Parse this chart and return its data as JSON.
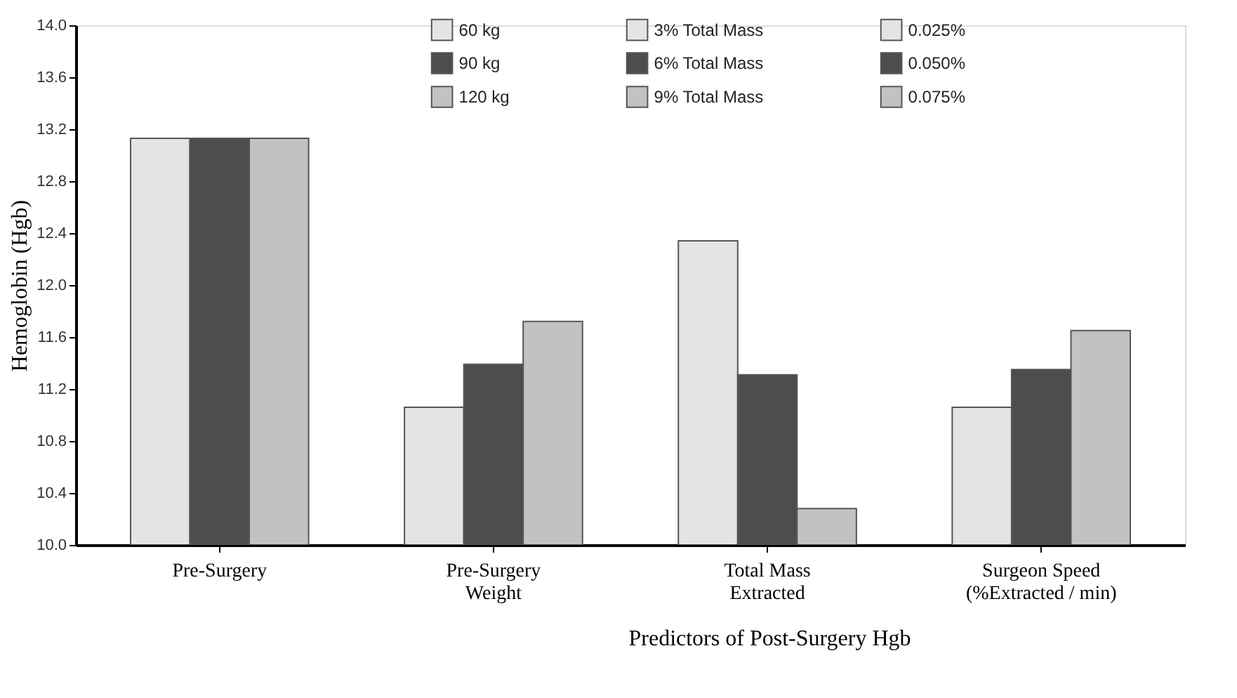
{
  "chart_data": {
    "type": "bar",
    "xlabel": "Predictors of Post-Surgery Hgb",
    "ylabel": "Hemoglobin (Hgb)",
    "categories": [
      "Pre-Surgery",
      "Pre-Surgery\nWeight",
      "Total Mass\nExtracted",
      "Surgeon Speed\n(%Extracted / min)"
    ],
    "series": [
      {
        "color": "#e4e4e4",
        "values": [
          13.13,
          null,
          null,
          null
        ]
      },
      {
        "color": "#4d4d4d",
        "values": [
          13.13,
          null,
          null,
          null
        ]
      },
      {
        "color": "#c2c2c2",
        "values": [
          13.13,
          null,
          null,
          null
        ]
      },
      {
        "name": "60 kg",
        "color": "#e4e4e4",
        "values": [
          null,
          11.06,
          null,
          null
        ]
      },
      {
        "name": "90 kg",
        "color": "#4d4d4d",
        "values": [
          null,
          11.39,
          null,
          null
        ]
      },
      {
        "name": "120 kg",
        "color": "#c2c2c2",
        "values": [
          null,
          11.72,
          null,
          null
        ]
      },
      {
        "name": "3% Total Mass",
        "color": "#e4e4e4",
        "values": [
          null,
          null,
          12.34,
          null
        ]
      },
      {
        "name": "6% Total Mass",
        "color": "#4d4d4d",
        "values": [
          null,
          null,
          11.31,
          null
        ]
      },
      {
        "name": "9% Total Mass",
        "color": "#c2c2c2",
        "values": [
          null,
          null,
          10.28,
          null
        ]
      },
      {
        "name": "0.025%",
        "color": "#e4e4e4",
        "values": [
          null,
          null,
          null,
          11.06
        ]
      },
      {
        "name": "0.050%",
        "color": "#4d4d4d",
        "values": [
          null,
          null,
          null,
          11.35
        ]
      },
      {
        "name": "0.075%",
        "color": "#c2c2c2",
        "values": [
          null,
          null,
          null,
          11.65
        ]
      }
    ],
    "ylim": [
      10.0,
      14.0
    ],
    "yticks": [
      {
        "value": 10,
        "label": "10.0"
      },
      10.4,
      10.8,
      11.2,
      11.6,
      {
        "value": 12,
        "label": "12.0"
      },
      12.4,
      12.8,
      13.2,
      13.6,
      {
        "value": 14,
        "label": "14.0"
      }
    ],
    "legend": "top",
    "grid": false
  }
}
